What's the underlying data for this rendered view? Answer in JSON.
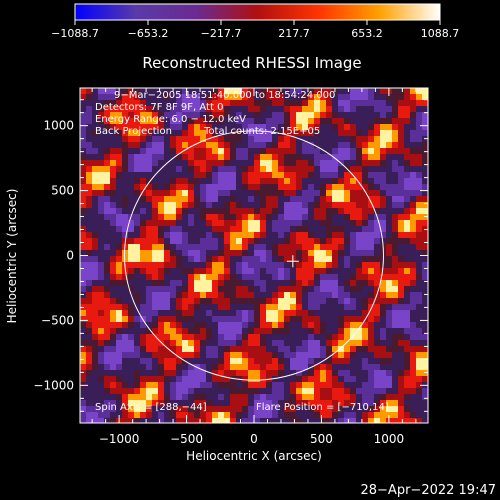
{
  "colorbar": {
    "ticks": [
      "-1088.7",
      "-653.2",
      "-217.7",
      "217.7",
      "653.2",
      "1088.7"
    ],
    "colors": [
      "#0000ff",
      "#5a3aa8",
      "#6a2a90",
      "#b01010",
      "#ff3300",
      "#ffa000",
      "#ffffff"
    ]
  },
  "chart_data": {
    "type": "heatmap",
    "title": "Reconstructed RHESSI Image",
    "xlabel": "Heliocentric X (arcsec)",
    "ylabel": "Heliocentric Y (arcsec)",
    "xlim": [
      -1290,
      1290
    ],
    "ylim": [
      -1290,
      1290
    ],
    "x_ticks": [
      -1000,
      -500,
      0,
      500,
      1000
    ],
    "y_ticks": [
      1000,
      500,
      0,
      -500,
      -1000
    ],
    "x_tick_labels": [
      "−1000",
      "−500",
      "0",
      "500",
      "1000"
    ],
    "y_tick_labels": [
      "1000",
      "500",
      "0",
      "−500",
      "−1000"
    ],
    "color_range": [
      -1088.7,
      1088.7
    ],
    "solar_limb": {
      "center": [
        0,
        0
      ],
      "radius": 960
    },
    "flare_position": [
      -710,
      14
    ],
    "spin_axis": [
      288,
      -44
    ],
    "annotations": {
      "time": "9−Mar−2005 18:51:40.000 to 18:54:24.000",
      "detectors": "Detectors: 7F 8F 9F, Att 0",
      "energy": "Energy Range: 6.0 − 12.0 keV",
      "method": "Back Projection",
      "counts": "Total counts: 2.15E+05",
      "spin_axis_label": "Spin Axis = [288,−44]",
      "flare_label": "Flare Position = [−710,14]"
    }
  },
  "footer": {
    "timestamp": "28−Apr−2022 19:47"
  }
}
